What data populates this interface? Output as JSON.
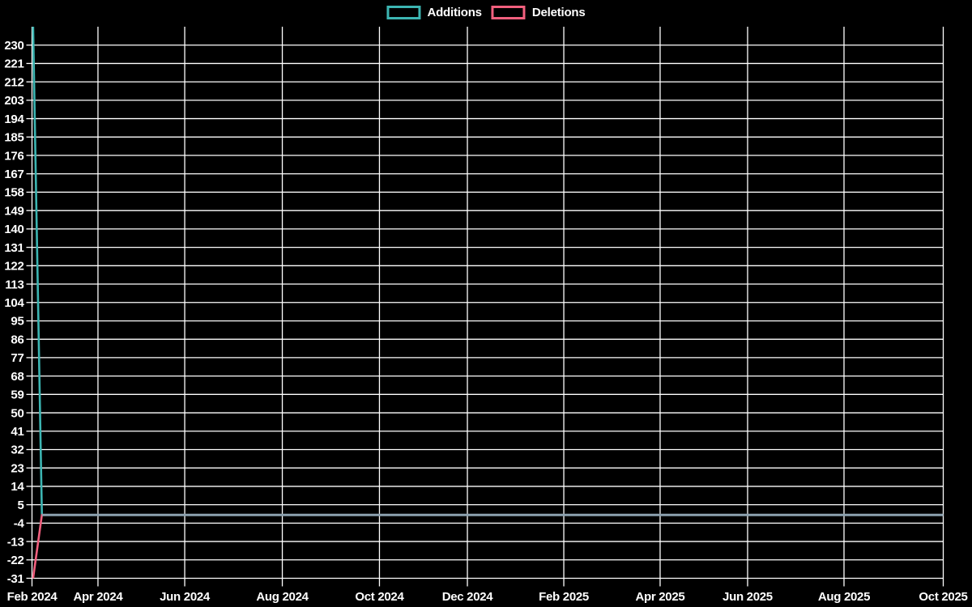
{
  "legend": {
    "items": [
      {
        "label": "Additions",
        "color": "#3cb5b2"
      },
      {
        "label": "Deletions",
        "color": "#f2607e"
      }
    ]
  },
  "chart_data": {
    "type": "line",
    "title": "",
    "xlabel": "",
    "ylabel": "",
    "background": "#000000",
    "grid": true,
    "grid_color": "#ffffff",
    "text_color": "#ffffff",
    "overlap_line_color": "#8ca1af",
    "legend_position": "top-center",
    "ylim": [
      -31,
      239
    ],
    "y_ticks": [
      230,
      221,
      212,
      203,
      194,
      185,
      176,
      167,
      158,
      149,
      140,
      131,
      122,
      113,
      104,
      95,
      86,
      77,
      68,
      59,
      50,
      41,
      32,
      23,
      14,
      5,
      -4,
      -13,
      -22,
      -31
    ],
    "x_ticks": [
      "Feb 2024",
      "Apr 2024",
      "Jun 2024",
      "Aug 2024",
      "Oct 2024",
      "Dec 2024",
      "Feb 2025",
      "Apr 2025",
      "Jun 2025",
      "Aug 2025",
      "Oct 2025"
    ],
    "series": [
      {
        "name": "Additions",
        "color": "#3cb5b2",
        "points": [
          [
            "2024-02-02",
            239
          ],
          [
            "2024-02-10",
            0
          ],
          [
            "2025-10-19",
            0
          ]
        ]
      },
      {
        "name": "Deletions",
        "color": "#f2607e",
        "points": [
          [
            "2024-02-02",
            -31
          ],
          [
            "2024-02-10",
            0
          ],
          [
            "2025-10-19",
            0
          ]
        ]
      }
    ]
  }
}
